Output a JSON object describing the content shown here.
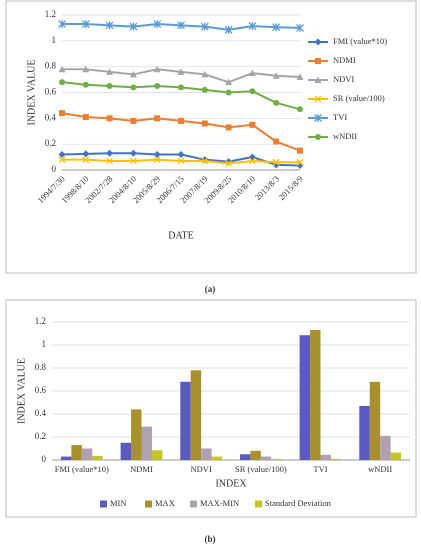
{
  "chart_data": [
    {
      "type": "line",
      "caption": "(a)",
      "x_label": "DATE",
      "y_label": "INDEX VALUE",
      "categories": [
        "1994/7/30",
        "1998/8/10",
        "2002/7/28",
        "2004/8/10",
        "2005/8/29",
        "2006/7/15",
        "2007/8/19",
        "2009/8/25",
        "2010/8/10",
        "2013/8/3",
        "2015/8/9"
      ],
      "series": [
        {
          "name": "FMI (value*10)",
          "color": "#4472c4",
          "marker": "diamond",
          "values": [
            0.12,
            0.125,
            0.13,
            0.13,
            0.12,
            0.12,
            0.08,
            0.065,
            0.1,
            0.04,
            0.035
          ]
        },
        {
          "name": "NDMI",
          "color": "#ed7d31",
          "marker": "square",
          "values": [
            0.44,
            0.41,
            0.4,
            0.38,
            0.4,
            0.38,
            0.36,
            0.33,
            0.35,
            0.22,
            0.15
          ]
        },
        {
          "name": "NDVI",
          "color": "#a5a5a5",
          "marker": "triangle",
          "values": [
            0.78,
            0.78,
            0.76,
            0.74,
            0.78,
            0.76,
            0.74,
            0.68,
            0.75,
            0.73,
            0.72
          ]
        },
        {
          "name": "SR (value/100)",
          "color": "#ffc000",
          "marker": "x",
          "values": [
            0.08,
            0.08,
            0.07,
            0.07,
            0.08,
            0.07,
            0.07,
            0.05,
            0.07,
            0.06,
            0.06
          ]
        },
        {
          "name": "TVI",
          "color": "#5b9bd5",
          "marker": "star",
          "values": [
            1.13,
            1.13,
            1.12,
            1.11,
            1.13,
            1.12,
            1.11,
            1.085,
            1.115,
            1.105,
            1.1
          ]
        },
        {
          "name": "wNDII",
          "color": "#70ad47",
          "marker": "circle",
          "values": [
            0.68,
            0.66,
            0.65,
            0.64,
            0.65,
            0.64,
            0.62,
            0.6,
            0.61,
            0.52,
            0.47
          ]
        }
      ],
      "ylim": [
        0,
        1.2
      ],
      "yticks": [
        0,
        0.2,
        0.4,
        0.6,
        0.8,
        1,
        1.2
      ],
      "grid": true,
      "legend": "right"
    },
    {
      "type": "bar",
      "caption": "(b)",
      "x_label": "INDEX",
      "y_label": "INDEX VALUE",
      "categories": [
        "FMI (value*10)",
        "NDMI",
        "NDVI",
        "SR (value/100)",
        "TVI",
        "wNDII"
      ],
      "series": [
        {
          "name": "MIN",
          "color": "#5b5bbf",
          "values": [
            0.03,
            0.15,
            0.68,
            0.05,
            1.085,
            0.47
          ]
        },
        {
          "name": "MAX",
          "color": "#a8902c",
          "values": [
            0.13,
            0.44,
            0.78,
            0.08,
            1.13,
            0.68
          ]
        },
        {
          "name": "MAX-MIN",
          "color": "#b0a0b0",
          "values": [
            0.1,
            0.29,
            0.1,
            0.03,
            0.045,
            0.21
          ]
        },
        {
          "name": "Standard Deviation",
          "color": "#c4c42c",
          "values": [
            0.035,
            0.085,
            0.03,
            0.01,
            0.01,
            0.065
          ]
        }
      ],
      "ylim": [
        0,
        1.2
      ],
      "yticks": [
        0,
        0.2,
        0.4,
        0.6,
        0.8,
        1,
        1.2
      ],
      "grid": true,
      "legend": "bottom"
    }
  ]
}
